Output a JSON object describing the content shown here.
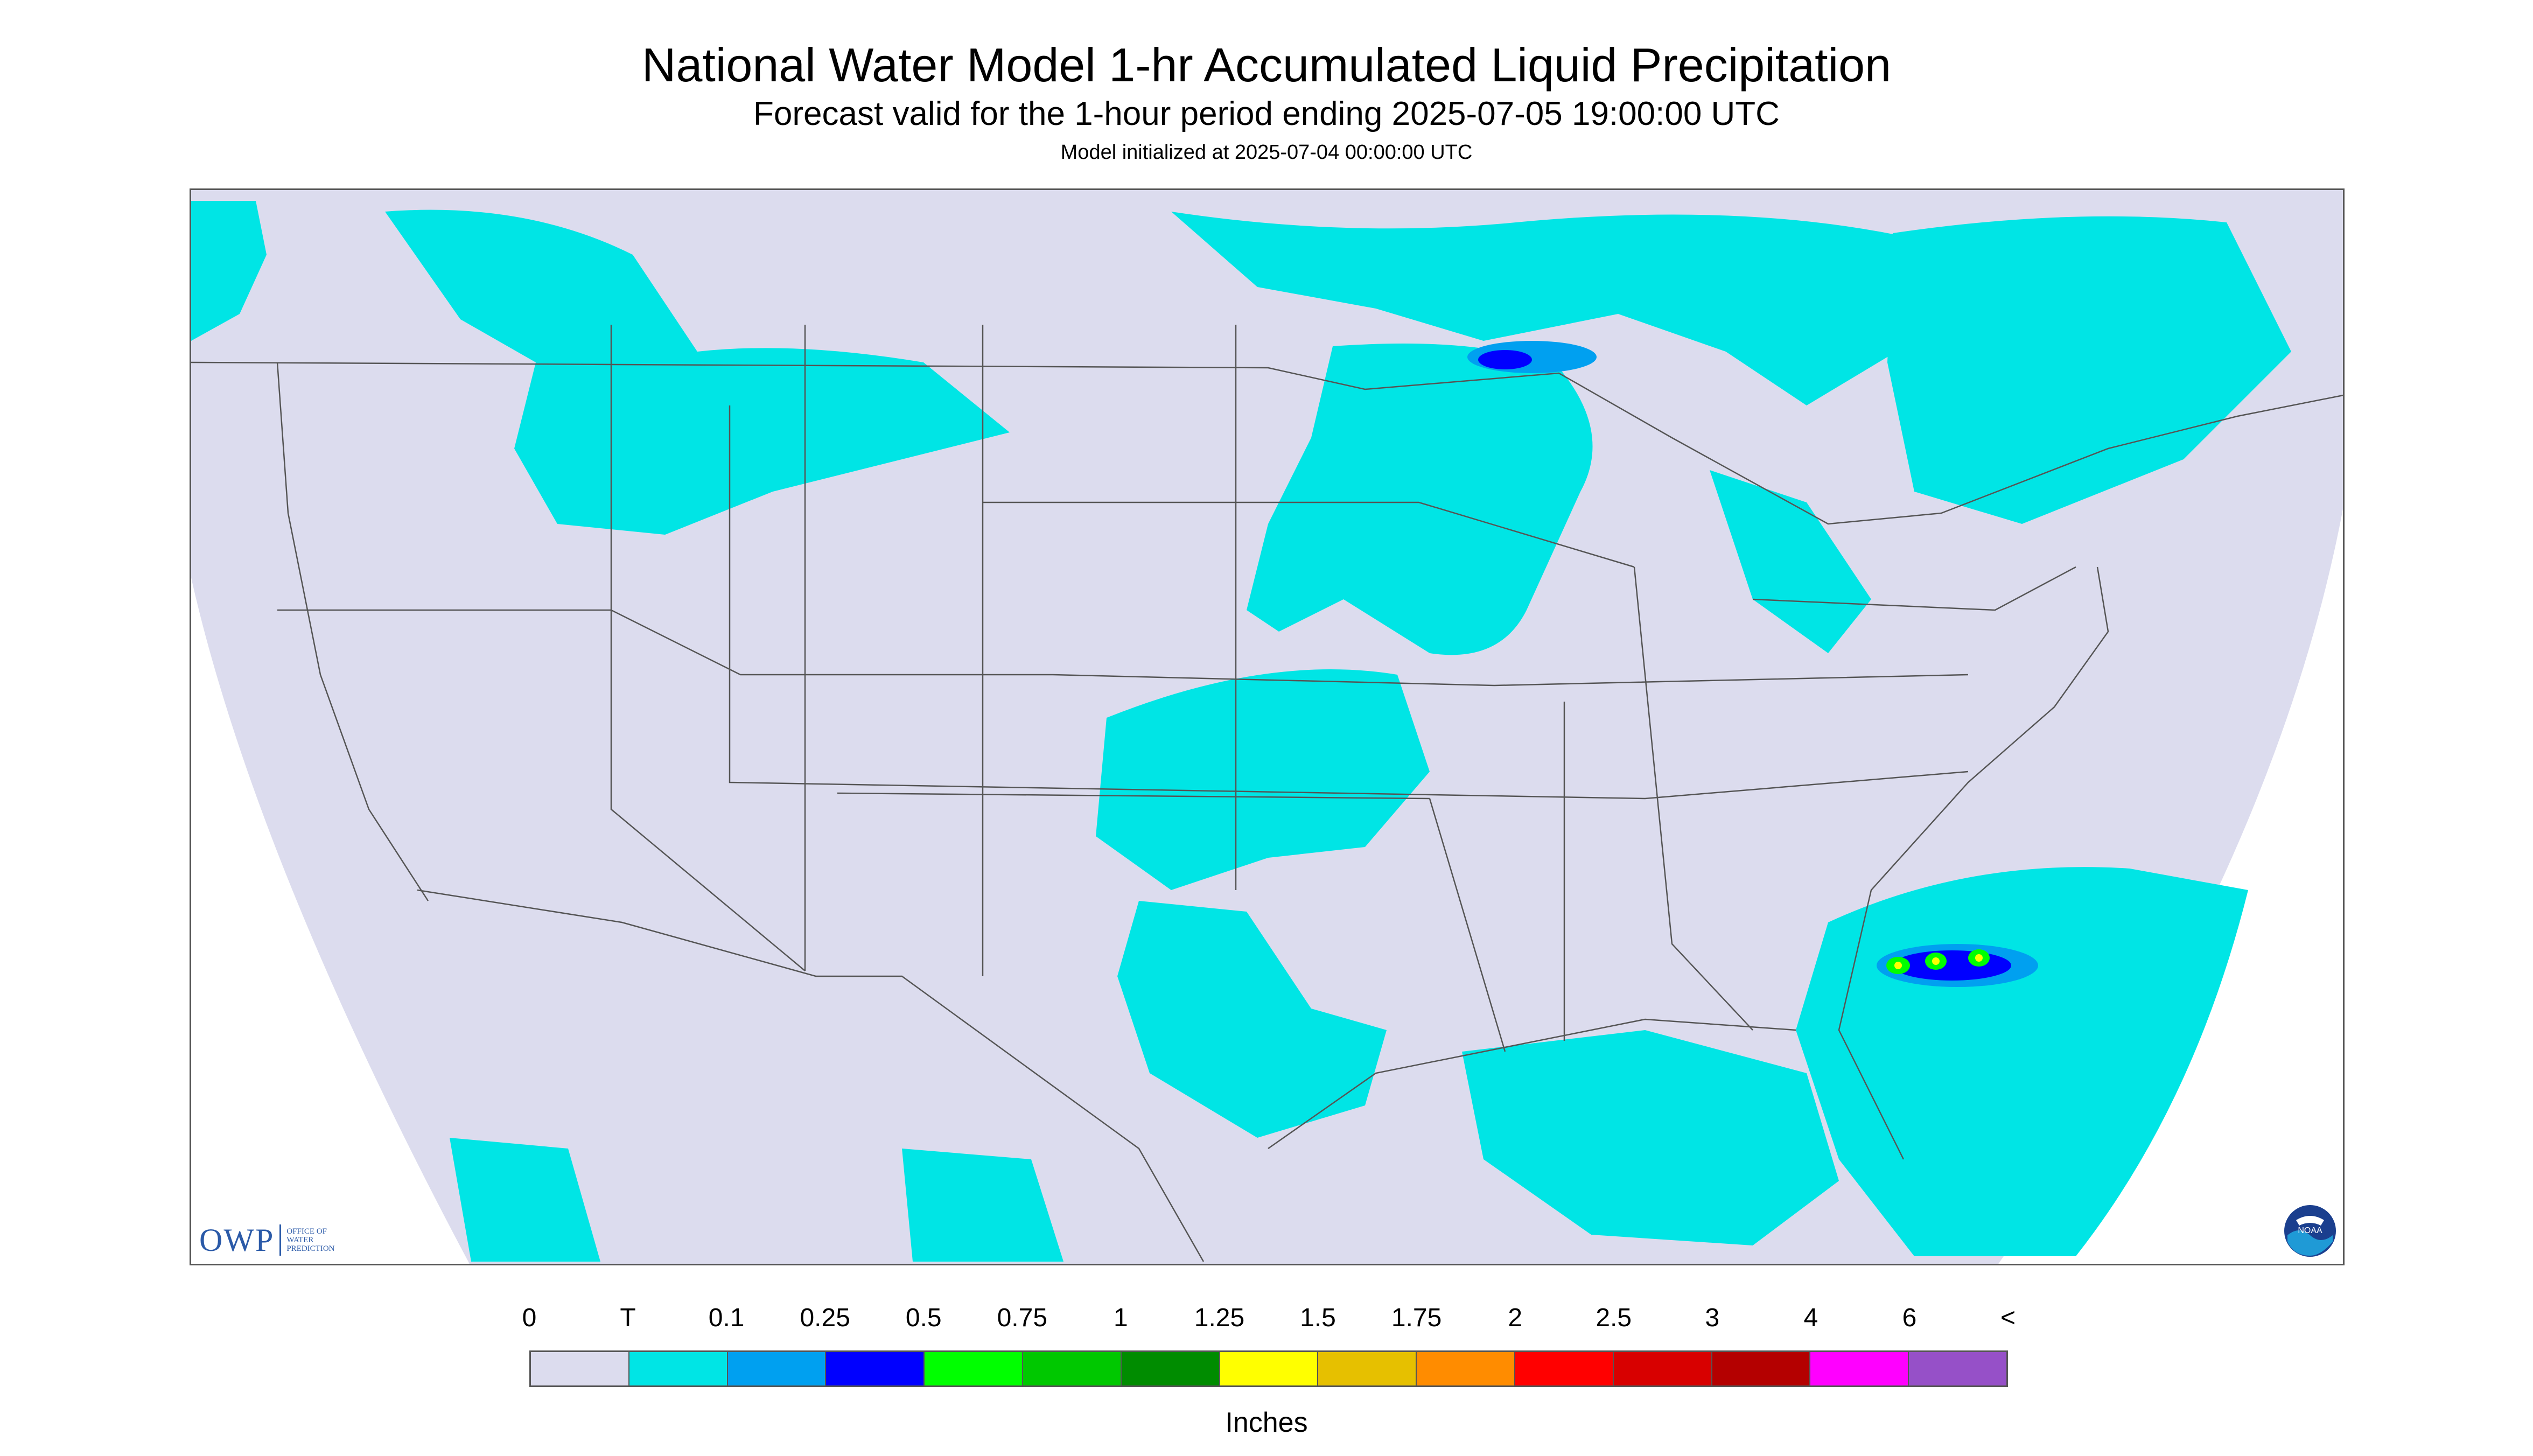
{
  "header": {
    "title": "National Water Model 1-hr Accumulated Liquid Precipitation",
    "subtitle": "Forecast valid for the 1-hour period ending 2025-07-05 19:00:00 UTC",
    "init_line": "Model initialized at 2025-07-04 00:00:00 UTC"
  },
  "logos": {
    "owp_letters": "OWP",
    "owp_line1": "OFFICE OF",
    "owp_line2": "WATER",
    "owp_line3": "PREDICTION",
    "noaa_letters": "NOAA"
  },
  "map": {
    "background_color": "#ffffff",
    "domain_fill": "#dcdcee",
    "boundary_color": "#555555",
    "precip_trace_color": "#00e5e5",
    "precip_01_color": "#00a0f0",
    "precip_025_color": "#0000ff",
    "precip_05_color": "#00ff00",
    "precip_075_color": "#00c800",
    "precip_125_color": "#ffff00"
  },
  "legend": {
    "labels": [
      "0",
      "T",
      "0.1",
      "0.25",
      "0.5",
      "0.75",
      "1",
      "1.25",
      "1.5",
      "1.75",
      "2",
      "2.5",
      "3",
      "4",
      "6",
      "<"
    ],
    "colors": [
      "#dcdcee",
      "#00e5e5",
      "#00a0f0",
      "#0000ff",
      "#00ff00",
      "#00c800",
      "#008c00",
      "#ffff00",
      "#e6c000",
      "#ff8c00",
      "#ff0000",
      "#d80000",
      "#b40000",
      "#ff00ff",
      "#9650c8"
    ],
    "units": "Inches"
  }
}
